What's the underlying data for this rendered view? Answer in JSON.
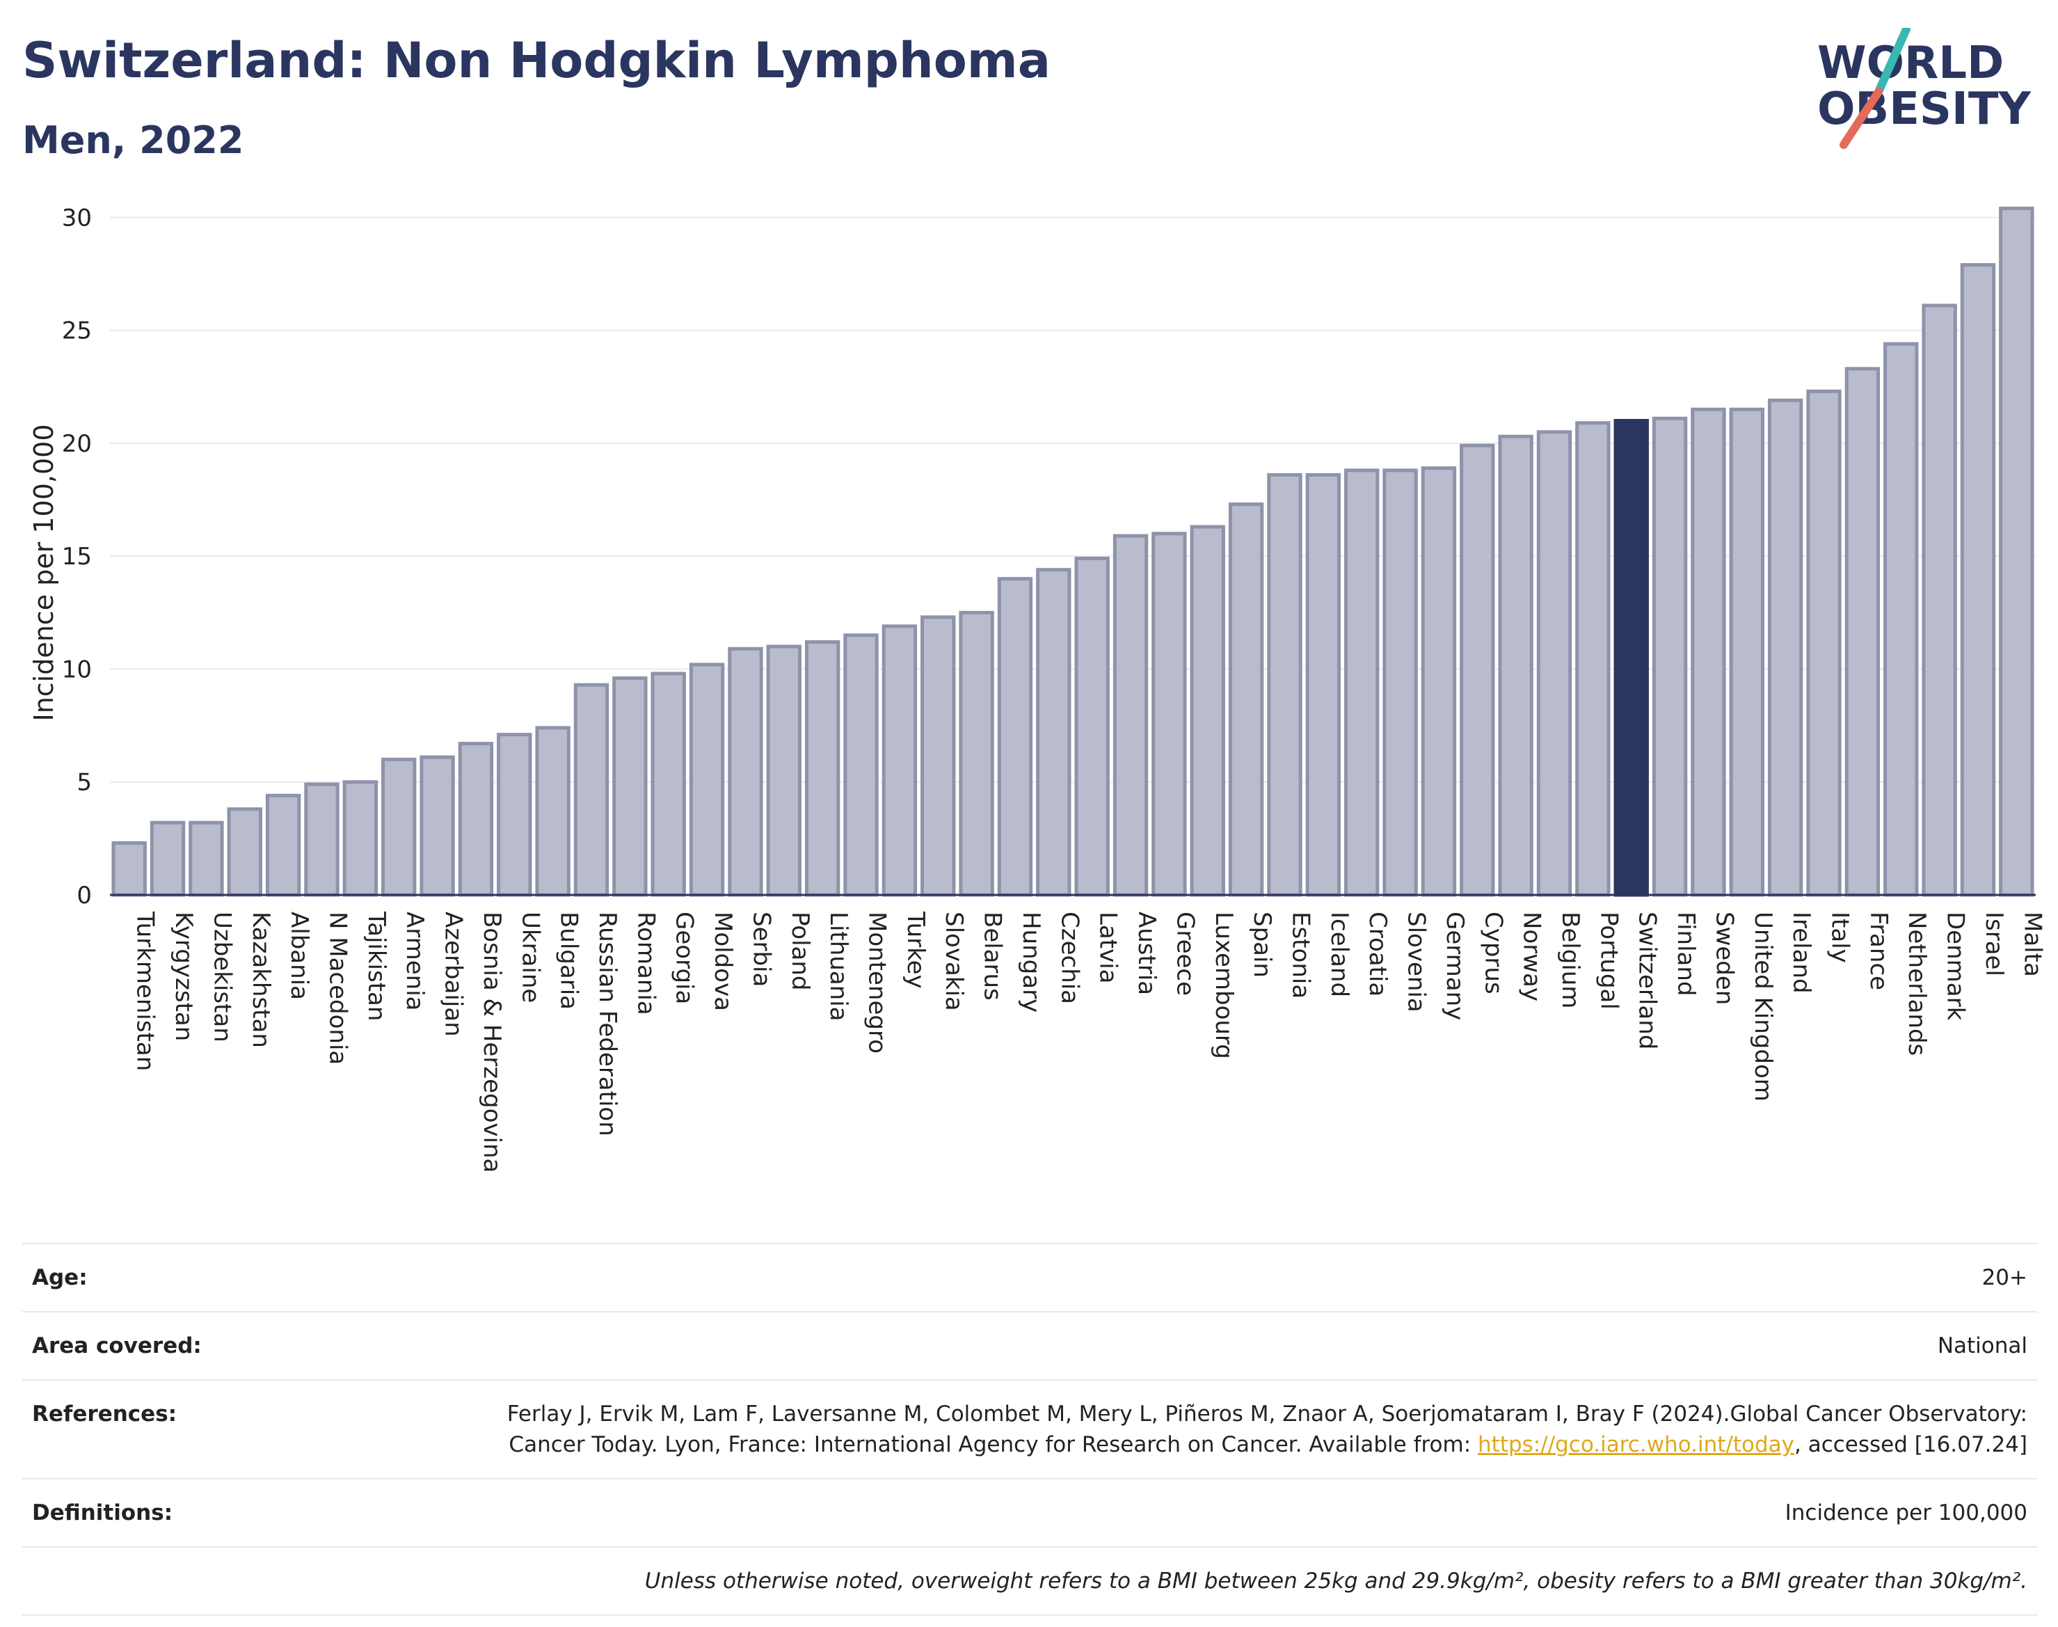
{
  "header": {
    "title": "Switzerland: Non Hodgkin Lymphoma",
    "subtitle": "Men, 2022"
  },
  "logo": {
    "line1": "WORLD",
    "line2": "OBESITY"
  },
  "colors": {
    "bar": "#b9bccc",
    "bar_stroke": "#8e93aa",
    "highlight": "#2a3560",
    "grid": "#e8e9ee",
    "axis": "#2a3560"
  },
  "chart_data": {
    "type": "bar",
    "ylabel": "Incidence per 100,000",
    "ylim": [
      0,
      31
    ],
    "yticks": [
      0,
      5,
      10,
      15,
      20,
      25,
      30
    ],
    "grid": true,
    "highlight": "Switzerland",
    "categories": [
      "Turkmenistan",
      "Kyrgyzstan",
      "Uzbekistan",
      "Kazakhstan",
      "Albania",
      "N Macedonia",
      "Tajikistan",
      "Armenia",
      "Azerbaijan",
      "Bosnia & Herzegovina",
      "Ukraine",
      "Bulgaria",
      "Russian Federation",
      "Romania",
      "Georgia",
      "Moldova",
      "Serbia",
      "Poland",
      "Lithuania",
      "Montenegro",
      "Turkey",
      "Slovakia",
      "Belarus",
      "Hungary",
      "Czechia",
      "Latvia",
      "Austria",
      "Greece",
      "Luxembourg",
      "Spain",
      "Estonia",
      "Iceland",
      "Croatia",
      "Slovenia",
      "Germany",
      "Cyprus",
      "Norway",
      "Belgium",
      "Portugal",
      "Switzerland",
      "Finland",
      "Sweden",
      "United Kingdom",
      "Ireland",
      "Italy",
      "France",
      "Netherlands",
      "Denmark",
      "Israel",
      "Malta"
    ],
    "values": [
      2.3,
      3.2,
      3.2,
      3.8,
      4.4,
      4.9,
      5.0,
      6.0,
      6.1,
      6.7,
      7.1,
      7.4,
      9.3,
      9.6,
      9.8,
      10.2,
      10.9,
      11.0,
      11.2,
      11.5,
      11.9,
      12.3,
      12.5,
      14.0,
      14.4,
      14.9,
      15.9,
      16.0,
      16.3,
      17.3,
      18.6,
      18.6,
      18.8,
      18.8,
      18.9,
      19.9,
      20.3,
      20.5,
      20.9,
      21.0,
      21.1,
      21.5,
      21.5,
      21.9,
      22.3,
      23.3,
      24.4,
      26.1,
      27.9,
      30.4
    ]
  },
  "info": {
    "age_label": "Age:",
    "age_value": "20+",
    "area_label": "Area covered:",
    "area_value": "National",
    "ref_label": "References:",
    "ref_text": "Ferlay J, Ervik M, Lam F, Laversanne M, Colombet M, Mery L, Piñeros M, Znaor A, Soerjomataram I, Bray F (2024).Global Cancer Observatory: Cancer Today. Lyon, France: International Agency for Research on Cancer. Available from: ",
    "ref_link": "https://gco.iarc.who.int/today",
    "ref_tail": ", accessed [16.07.24]",
    "def_label": "Definitions:",
    "def_value": "Incidence per 100,000",
    "note": "Unless otherwise noted, overweight refers to a BMI between 25kg and 29.9kg/m², obesity refers to a BMI greater than 30kg/m²."
  }
}
